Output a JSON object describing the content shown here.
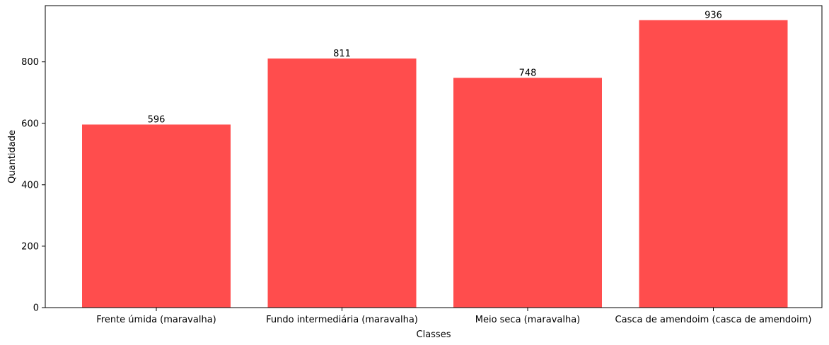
{
  "chart_data": {
    "type": "bar",
    "categories": [
      "Frente úmida (maravalha)",
      "Fundo intermediária (maravalha)",
      "Meio seca (maravalha)",
      "Casca de amendoim (casca de amendoim)"
    ],
    "values": [
      596,
      811,
      748,
      936
    ],
    "data_labels": [
      "596",
      "811",
      "748",
      "936"
    ],
    "title": "",
    "xlabel": "Classes",
    "ylabel": "Quantidade",
    "ylim": [
      0,
      983
    ],
    "yticks": [
      0,
      200,
      400,
      600,
      800
    ],
    "ytick_labels": [
      "0",
      "200",
      "400",
      "600",
      "800"
    ],
    "bar_color": "#ff4d4d",
    "grid": false,
    "legend": "none"
  }
}
